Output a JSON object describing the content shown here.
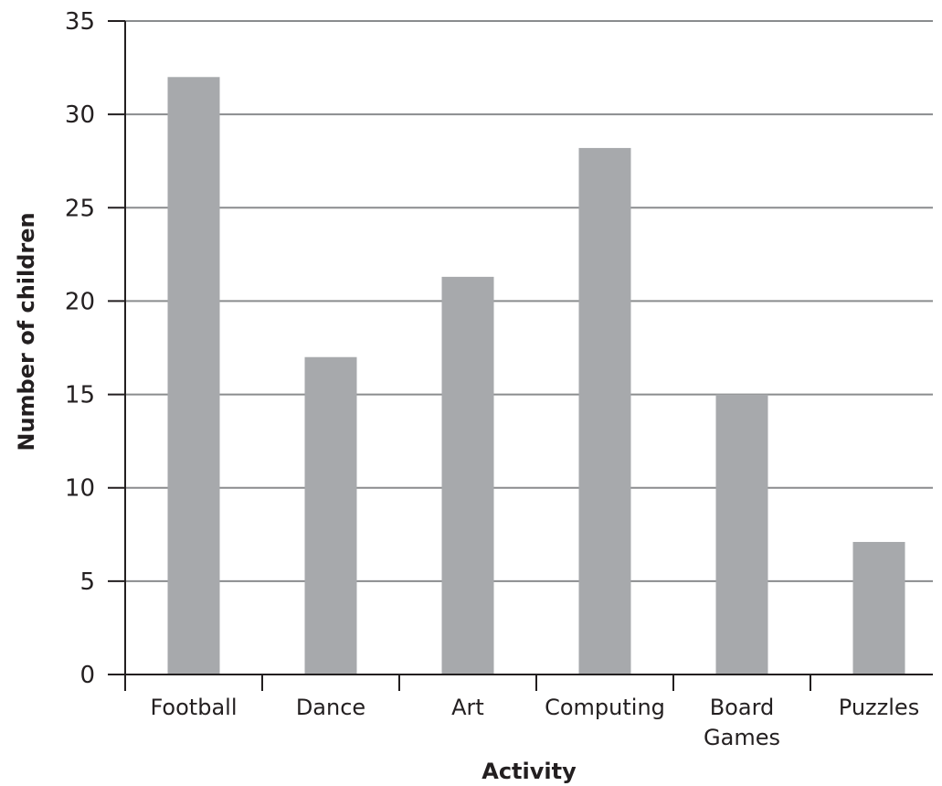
{
  "chart_data": {
    "type": "bar",
    "categories": [
      [
        "Football"
      ],
      [
        "Dance"
      ],
      [
        "Art"
      ],
      [
        "Computing"
      ],
      [
        "Board",
        "Games"
      ],
      [
        "Puzzles"
      ]
    ],
    "values": [
      32,
      17,
      21.3,
      28.2,
      15,
      7.1
    ],
    "title": "",
    "xlabel": "Activity",
    "ylabel": "Number of children",
    "ylim": [
      0,
      35
    ],
    "yticks": [
      "0",
      "5",
      "10",
      "15",
      "20",
      "25",
      "30",
      "35"
    ],
    "grid": true,
    "legend": "none",
    "colors": {
      "bar": "#a7a9ac",
      "axis": "#231f20",
      "grid": "#8a8c8e"
    }
  }
}
